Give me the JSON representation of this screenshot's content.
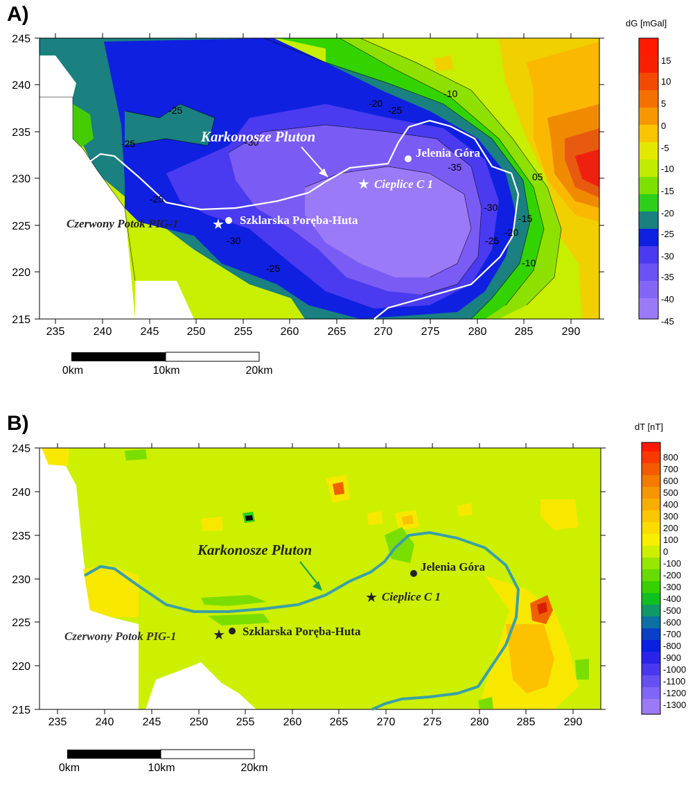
{
  "panel_a": {
    "letter": "A)",
    "unit": "dG [mGal]",
    "x_ticks": [
      "235",
      "240",
      "245",
      "250",
      "255",
      "260",
      "265",
      "270",
      "275",
      "280",
      "285",
      "290"
    ],
    "y_ticks": [
      "245",
      "240",
      "235",
      "230",
      "225",
      "220",
      "215"
    ],
    "colorbar": [
      "15",
      "10",
      "5",
      "0",
      "-5",
      "-10",
      "-15",
      "-20",
      "-25",
      "-30",
      "-35",
      "-40",
      "-45"
    ],
    "pluton_label": "Karkonosze Pluton",
    "jelenia": "Jelenia Góra",
    "cieplice": "Cieplice C 1",
    "czerwony": "Czerwony Potok PIG-1",
    "szklarska": "Szklarska Poręba-Huta",
    "contours": [
      "-25",
      "-25",
      "-25",
      "-30",
      "-25",
      "-30",
      "-20",
      "-25",
      "-10",
      "-35",
      "-30",
      "-25",
      "-20",
      "-15",
      "-10",
      "05"
    ],
    "scale": [
      "0km",
      "10km",
      "20km"
    ]
  },
  "panel_b": {
    "letter": "B)",
    "unit": "dT [nT]",
    "x_ticks": [
      "235",
      "240",
      "245",
      "250",
      "255",
      "260",
      "265",
      "270",
      "275",
      "280",
      "285",
      "290"
    ],
    "y_ticks": [
      "245",
      "240",
      "235",
      "230",
      "225",
      "220",
      "215"
    ],
    "colorbar": [
      "800",
      "700",
      "600",
      "500",
      "400",
      "300",
      "200",
      "100",
      "0",
      "-100",
      "-200",
      "-300",
      "-400",
      "-500",
      "-600",
      "-700",
      "-800",
      "-900",
      "-1000",
      "-1100",
      "-1200",
      "-1300"
    ],
    "pluton_label": "Karkonosze Pluton",
    "jelenia": "Jelenia Góra",
    "cieplice": "Cieplice C 1",
    "czerwony": "Czerwony Potok PIG-1",
    "szklarska": "Szklarska Poręba-Huta",
    "scale": [
      "0km",
      "10km",
      "20km"
    ]
  }
}
